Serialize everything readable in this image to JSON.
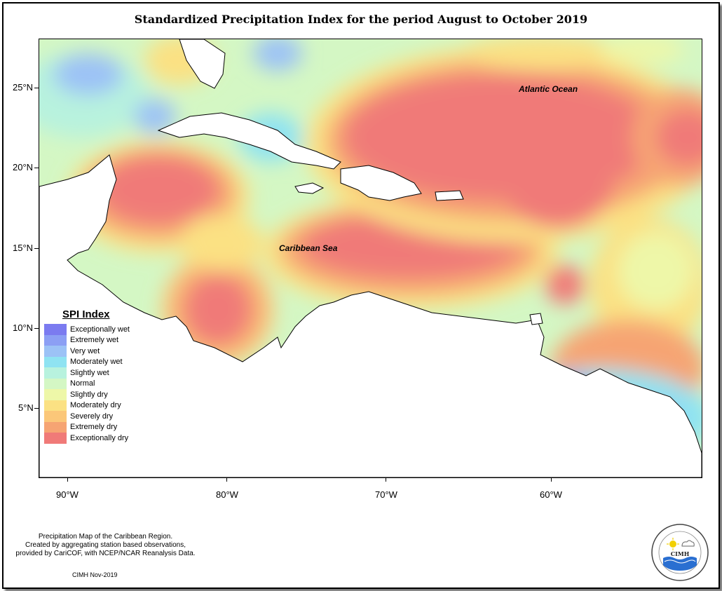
{
  "title": "Standardized Precipitation Index for the period August to October 2019",
  "axes": {
    "lat_labels": [
      "25°N",
      "20°N",
      "15°N",
      "10°N",
      "5°N"
    ],
    "lon_labels": [
      "90°W",
      "80°W",
      "70°W",
      "60°W"
    ]
  },
  "regions": {
    "caribbean": "Caribbean Sea",
    "atlantic": "Atlantic Ocean"
  },
  "legend": {
    "title": "SPI Index",
    "items": [
      {
        "label": "Exceptionally wet",
        "color": "#7b7bf0"
      },
      {
        "label": "Extremely wet",
        "color": "#8c9ff4"
      },
      {
        "label": "Very wet",
        "color": "#9cc2f6"
      },
      {
        "label": "Moderately wet",
        "color": "#8fe3f2"
      },
      {
        "label": "Slightly wet",
        "color": "#b8f2de"
      },
      {
        "label": "Normal",
        "color": "#d4f7c4"
      },
      {
        "label": "Slightly dry",
        "color": "#eef7a8"
      },
      {
        "label": "Moderately dry",
        "color": "#fbe183"
      },
      {
        "label": "Severely dry",
        "color": "#fbc779"
      },
      {
        "label": "Extremely dry",
        "color": "#f6a473"
      },
      {
        "label": "Exceptionally dry",
        "color": "#f07a78"
      }
    ]
  },
  "credits": {
    "line1": "Precipitation Map of the Caribbean Region.",
    "line2": "Created by aggregating station based observations,",
    "line3": "provided by CariCOF, with NCEP/NCAR Reanalysis Data.",
    "date": "CIMH Nov-2019"
  },
  "logo": {
    "text": "CIMH",
    "icon": "cimh-logo-icon"
  }
}
